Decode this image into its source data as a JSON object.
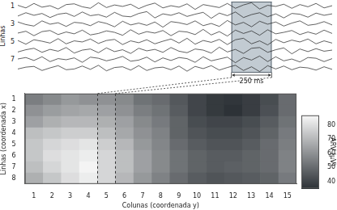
{
  "chart_data": [
    {
      "type": "line",
      "ylabel": "Linhas",
      "row_labels": [
        1,
        null,
        3,
        null,
        5,
        null,
        7,
        null
      ],
      "xlim": [
        0,
        39
      ],
      "ylim": [
        -1.2,
        1.2
      ],
      "tick_labels": false,
      "window": {
        "start": 26.5,
        "end": 31.5,
        "label": "250 ms"
      },
      "traces": [
        [
          0.2,
          -0.5,
          0.7,
          -0.3,
          0.1,
          -0.8,
          0.4,
          0.6,
          -0.2,
          -0.6,
          0.9,
          -0.4,
          0.3,
          -0.1,
          0.5,
          -0.7,
          0.2,
          0.8,
          -0.5,
          0.1,
          -0.3,
          0.6,
          -0.9,
          0.4,
          0.0,
          -0.4,
          0.7,
          -0.6,
          0.3,
          0.9,
          -0.8,
          0.2,
          -0.1,
          0.5,
          -0.6,
          0.4,
          -0.2,
          0.7,
          -0.5,
          0.1
        ],
        [
          -0.3,
          0.6,
          -0.1,
          0.4,
          -0.7,
          0.2,
          0.5,
          -0.4,
          0.8,
          -0.2,
          0.1,
          -0.6,
          0.7,
          -0.3,
          -0.5,
          0.4,
          0.9,
          -0.8,
          0.3,
          -0.1,
          0.6,
          -0.4,
          0.2,
          0.7,
          -0.9,
          0.5,
          -0.2,
          0.8,
          -0.7,
          0.1,
          0.6,
          -0.5,
          0.3,
          -0.8,
          0.4,
          0.2,
          -0.6,
          0.5,
          -0.1,
          0.3
        ],
        [
          0.5,
          -0.2,
          -0.6,
          0.8,
          -0.1,
          0.3,
          -0.7,
          0.4,
          0.2,
          -0.5,
          0.6,
          0.1,
          -0.8,
          0.7,
          -0.3,
          0.2,
          -0.4,
          0.5,
          -0.9,
          0.6,
          0.3,
          -0.2,
          0.8,
          -0.5,
          0.1,
          -0.7,
          0.9,
          -0.3,
          0.4,
          -0.8,
          0.7,
          -0.1,
          0.5,
          -0.6,
          0.2,
          0.8,
          -0.4,
          -0.1,
          0.6,
          -0.3
        ],
        [
          -0.1,
          0.4,
          -0.8,
          0.3,
          0.6,
          -0.5,
          0.2,
          -0.3,
          0.7,
          -0.6,
          -0.2,
          0.5,
          0.1,
          -0.7,
          0.8,
          -0.4,
          0.3,
          -0.1,
          0.6,
          -0.8,
          0.4,
          0.2,
          -0.5,
          0.9,
          -0.6,
          0.3,
          -0.9,
          0.7,
          -0.2,
          0.5,
          -0.7,
          0.8,
          -0.3,
          0.1,
          0.6,
          -0.5,
          0.2,
          -0.4,
          0.7,
          -0.2
        ],
        [
          0.3,
          -0.7,
          0.5,
          0.1,
          -0.4,
          0.8,
          -0.6,
          0.2,
          -0.1,
          0.7,
          -0.5,
          0.3,
          0.6,
          -0.8,
          0.2,
          -0.3,
          0.5,
          -0.6,
          0.1,
          0.7,
          -0.4,
          0.9,
          -0.7,
          0.3,
          -0.2,
          0.6,
          -0.8,
          0.5,
          0.9,
          -0.6,
          0.2,
          -0.9,
          0.6,
          -0.3,
          0.4,
          -0.1,
          0.7,
          -0.6,
          0.2,
          -0.4
        ],
        [
          -0.4,
          0.2,
          0.6,
          -0.5,
          0.3,
          -0.2,
          0.8,
          -0.7,
          0.1,
          0.4,
          -0.6,
          0.7,
          -0.3,
          0.2,
          -0.8,
          0.6,
          -0.1,
          0.3,
          -0.5,
          0.8,
          -0.2,
          -0.6,
          0.4,
          0.1,
          -0.7,
          0.9,
          -0.4,
          0.3,
          -0.8,
          0.6,
          0.8,
          -0.5,
          0.2,
          0.7,
          -0.9,
          0.4,
          -0.3,
          0.5,
          -0.2,
          0.1
        ],
        [
          0.1,
          0.5,
          -0.3,
          0.7,
          -0.6,
          0.2,
          -0.1,
          0.4,
          -0.8,
          0.6,
          0.3,
          -0.4,
          0.1,
          0.8,
          -0.5,
          -0.2,
          0.6,
          -0.7,
          0.4,
          -0.3,
          0.5,
          0.2,
          -0.8,
          0.7,
          -0.4,
          0.1,
          0.6,
          -0.9,
          0.5,
          -0.2,
          0.9,
          -0.6,
          0.7,
          -0.4,
          0.1,
          -0.7,
          0.5,
          0.3,
          -0.6,
          0.2
        ],
        [
          -0.2,
          0.3,
          0.5,
          -0.6,
          0.1,
          0.7,
          -0.4,
          -0.2,
          0.6,
          -0.3,
          0.8,
          -0.7,
          0.2,
          0.4,
          -0.5,
          0.7,
          -0.6,
          0.1,
          0.3,
          -0.4,
          0.6,
          -0.8,
          0.5,
          -0.1,
          0.7,
          -0.5,
          0.2,
          0.8,
          -0.6,
          0.4,
          -0.9,
          0.7,
          -0.2,
          0.6,
          -0.4,
          0.3,
          0.1,
          -0.5,
          0.4,
          -0.3
        ]
      ]
    },
    {
      "type": "heatmap",
      "xlabel": "Colunas (coordenada y)",
      "ylabel": "Linhas (coordenada x)",
      "xlim": [
        0.5,
        15.5
      ],
      "xticks": [
        1,
        2,
        3,
        4,
        5,
        6,
        7,
        8,
        9,
        10,
        11,
        12,
        13,
        14,
        15
      ],
      "ylim": [
        0.5,
        8.5
      ],
      "yticks": [
        1,
        2,
        3,
        4,
        5,
        6,
        7,
        8
      ],
      "highlight_column": 5,
      "cells": [
        [
          55,
          58,
          62,
          60,
          60,
          58,
          52,
          50,
          45,
          40,
          37,
          36,
          38,
          42,
          50
        ],
        [
          60,
          63,
          65,
          66,
          64,
          60,
          55,
          52,
          46,
          40,
          37,
          35,
          38,
          43,
          50
        ],
        [
          64,
          68,
          70,
          70,
          68,
          64,
          58,
          54,
          48,
          42,
          40,
          40,
          42,
          46,
          52
        ],
        [
          72,
          74,
          76,
          76,
          72,
          66,
          60,
          56,
          48,
          44,
          42,
          42,
          44,
          48,
          54
        ],
        [
          74,
          78,
          80,
          82,
          76,
          70,
          62,
          57,
          50,
          46,
          44,
          44,
          46,
          50,
          55
        ],
        [
          74,
          80,
          82,
          84,
          78,
          72,
          64,
          58,
          52,
          48,
          46,
          46,
          48,
          50,
          56
        ],
        [
          72,
          78,
          82,
          86,
          78,
          72,
          64,
          58,
          52,
          48,
          46,
          47,
          48,
          50,
          56
        ],
        [
          68,
          74,
          80,
          84,
          78,
          70,
          62,
          56,
          50,
          46,
          44,
          45,
          46,
          48,
          54
        ]
      ],
      "colorbar": {
        "label": "ARV (µV)",
        "range": [
          35,
          87
        ],
        "ticks": [
          40,
          50,
          60,
          70,
          80
        ]
      }
    }
  ]
}
